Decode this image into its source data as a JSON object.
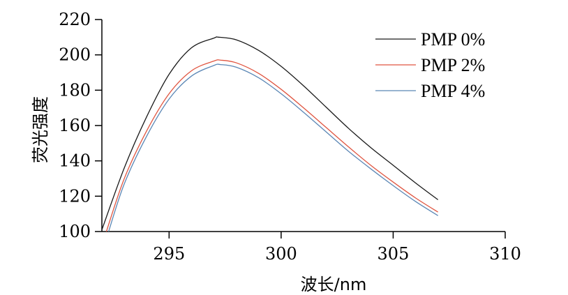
{
  "chart_data": {
    "type": "line",
    "title": "",
    "xlabel": "波长/nm",
    "ylabel": "荧光强度",
    "xlim": [
      292,
      310
    ],
    "ylim": [
      100,
      220
    ],
    "xticks": [
      295,
      300,
      305,
      310
    ],
    "yticks": [
      100,
      120,
      140,
      160,
      180,
      200,
      220
    ],
    "grid": false,
    "legend_position": "top-right",
    "series": [
      {
        "name": "PMP 0%",
        "color": "#1a1a1a",
        "x": [
          292,
          293,
          294,
          295,
          296,
          297,
          297.2,
          298,
          299,
          300,
          301,
          302,
          303,
          304,
          305,
          306,
          307
        ],
        "values": [
          101,
          136,
          165,
          189,
          204,
          209.5,
          210,
          208.5,
          202.5,
          193.5,
          182.5,
          170.5,
          158.5,
          147.5,
          137.5,
          127.5,
          118
        ]
      },
      {
        "name": "PMP 2%",
        "color": "#e05540",
        "x": [
          292.2,
          293,
          294,
          295,
          296,
          297,
          297.3,
          298,
          299,
          300,
          301,
          302,
          303,
          304,
          305,
          306,
          307
        ],
        "values": [
          100,
          130,
          157,
          178,
          191,
          196.5,
          197,
          195.5,
          189.5,
          180.5,
          170,
          159,
          148,
          137.5,
          128,
          119,
          111
        ]
      },
      {
        "name": "PMP 4%",
        "color": "#5b87b5",
        "x": [
          292.3,
          293,
          294,
          295,
          296,
          297,
          297.3,
          298,
          299,
          300,
          301,
          302,
          303,
          304,
          305,
          306,
          307
        ],
        "values": [
          100,
          127,
          154,
          175,
          188,
          194,
          194.5,
          193,
          187,
          178,
          167.5,
          156.5,
          145.5,
          135.5,
          126,
          117,
          109
        ]
      }
    ]
  }
}
